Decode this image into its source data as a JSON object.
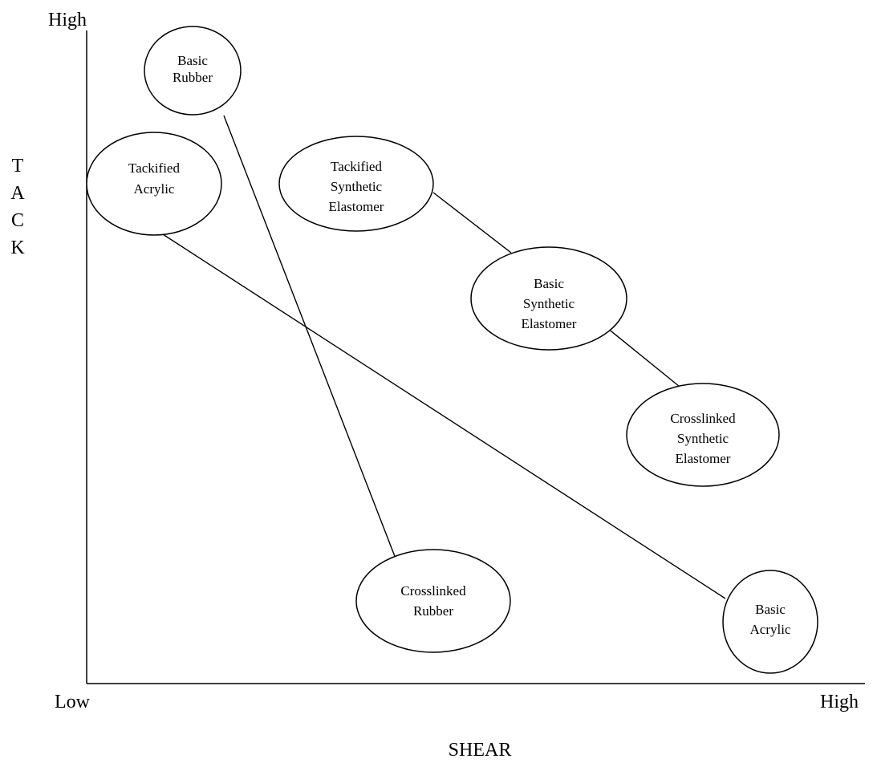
{
  "axes": {
    "y_letters": [
      "T",
      "A",
      "C",
      "K"
    ],
    "y_high": "High",
    "x_low": "Low",
    "x_high": "High",
    "x_title": "SHEAR"
  },
  "nodes": [
    {
      "id": "basic-rubber",
      "lines": [
        "Basic",
        "Rubber"
      ]
    },
    {
      "id": "tackified-acrylic",
      "lines": [
        "Tackified",
        "Acrylic"
      ]
    },
    {
      "id": "tackified-synthetic-elastomer",
      "lines": [
        "Tackified",
        "Synthetic",
        "Elastomer"
      ]
    },
    {
      "id": "basic-synthetic-elastomer",
      "lines": [
        "Basic",
        "Synthetic",
        "Elastomer"
      ]
    },
    {
      "id": "crosslinked-synthetic-elastomer",
      "lines": [
        "Crosslinked",
        "Synthetic",
        "Elastomer"
      ]
    },
    {
      "id": "crosslinked-rubber",
      "lines": [
        "Crosslinked",
        "Rubber"
      ]
    },
    {
      "id": "basic-acrylic",
      "lines": [
        "Basic",
        "Acrylic"
      ]
    }
  ],
  "links": [
    {
      "from": "basic-rubber",
      "to": "crosslinked-rubber"
    },
    {
      "from": "tackified-acrylic",
      "to": "basic-acrylic"
    },
    {
      "from": "tackified-synthetic-elastomer",
      "to": "basic-synthetic-elastomer"
    },
    {
      "from": "basic-synthetic-elastomer",
      "to": "crosslinked-synthetic-elastomer"
    }
  ]
}
